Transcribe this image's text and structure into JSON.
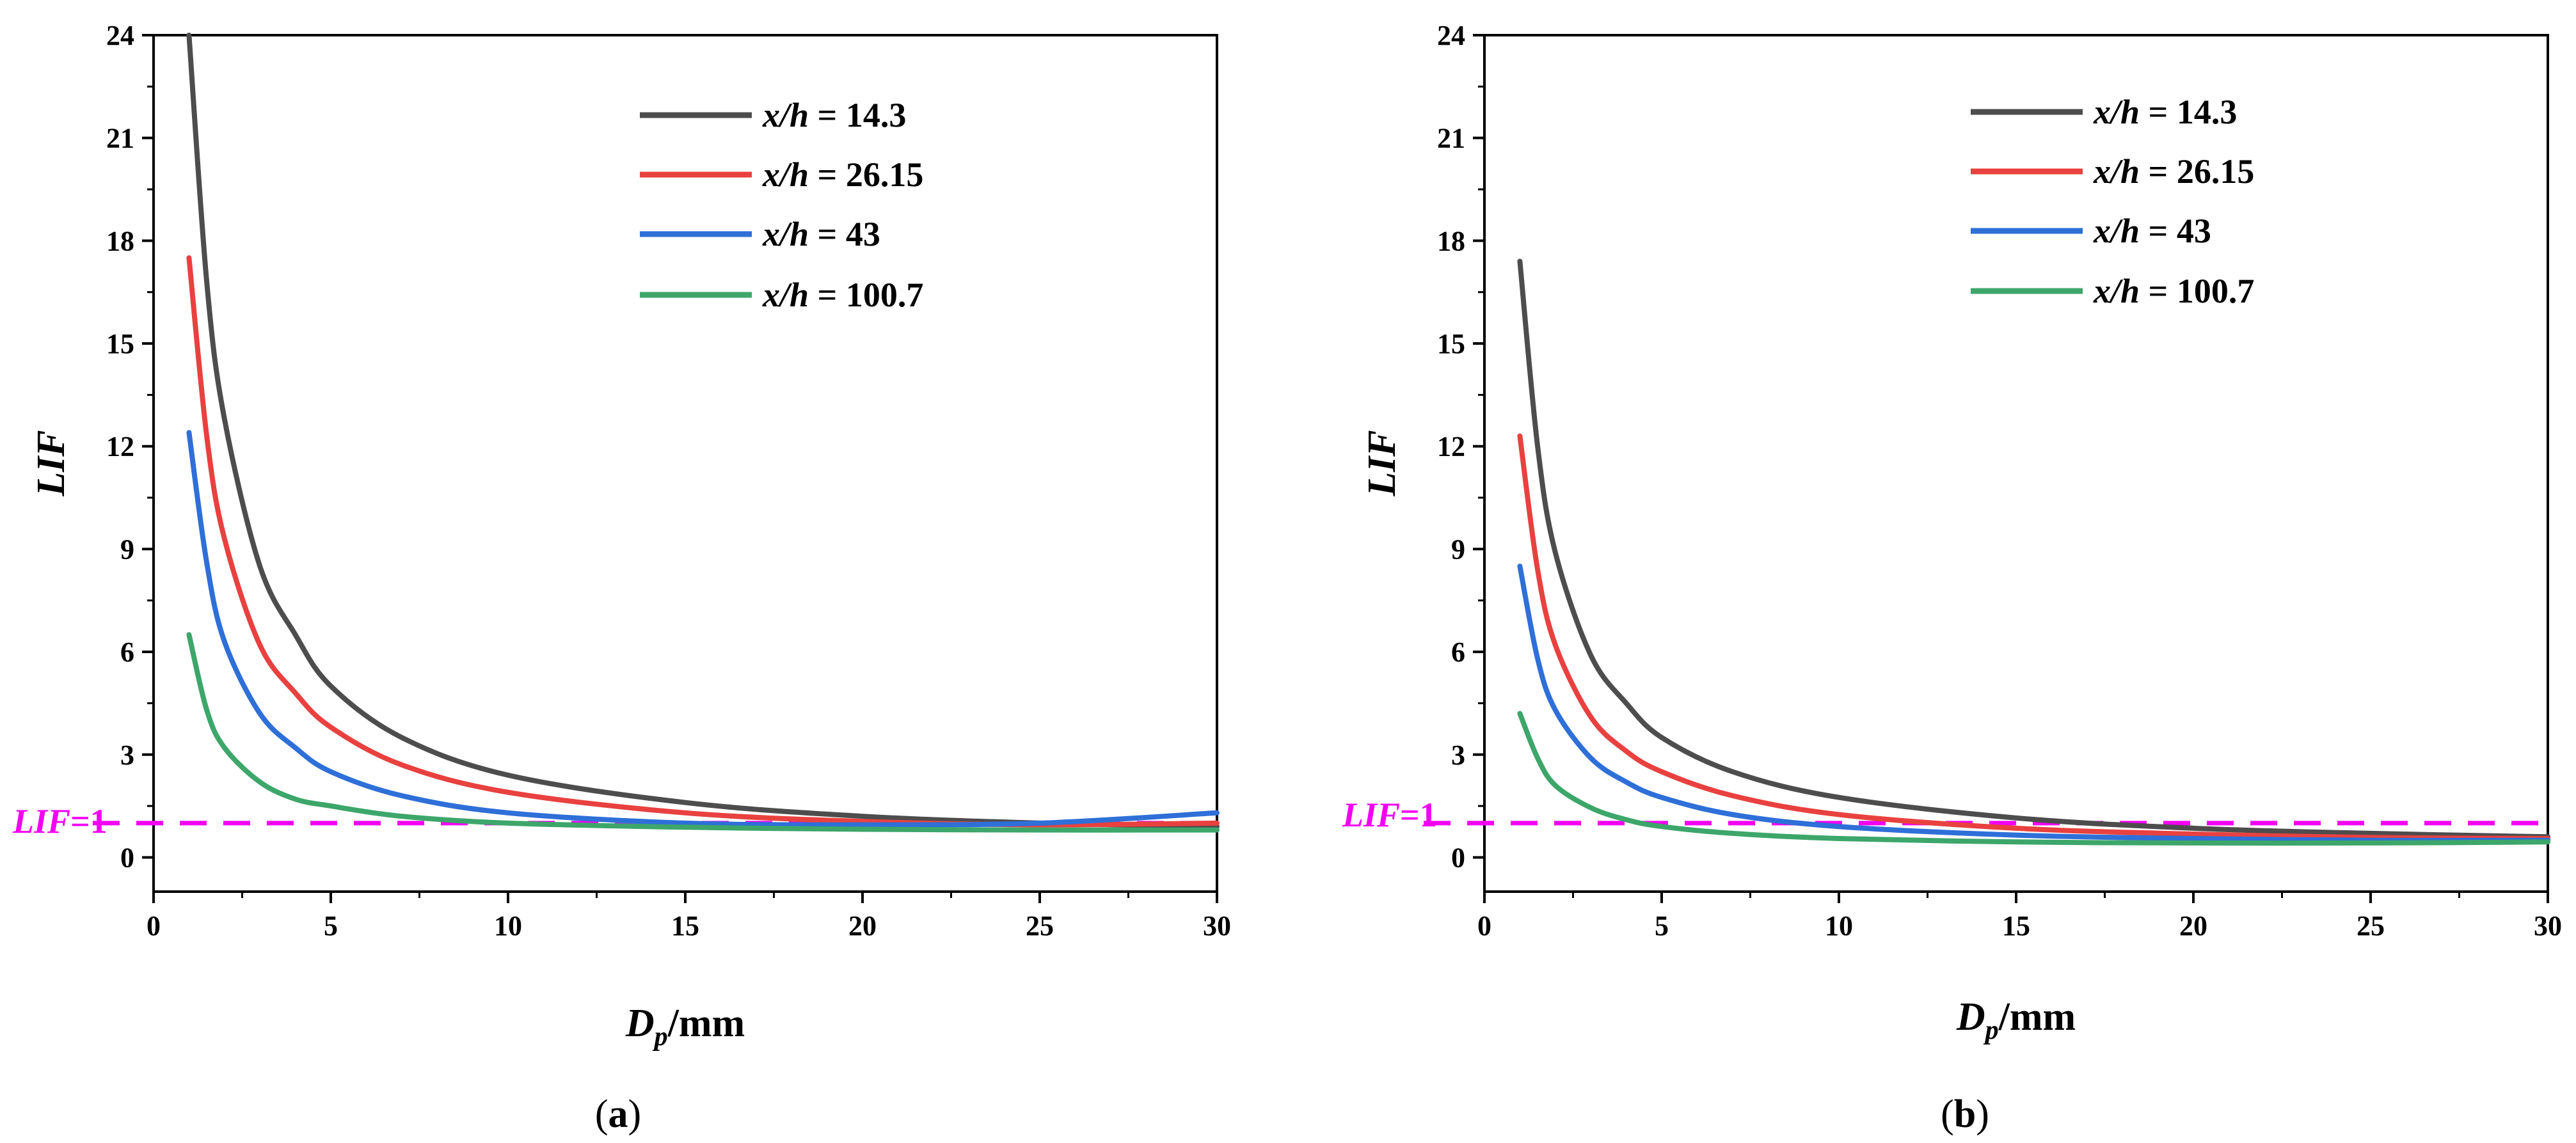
{
  "colors": {
    "series": [
      "#4d4d4d",
      "#e8413f",
      "#2e6fd8",
      "#3da66a"
    ],
    "reference": "#f200f2",
    "axis": "#000000"
  },
  "chart_data": [
    {
      "type": "line",
      "caption": "a",
      "xlabel_main": "D",
      "xlabel_sub": "p",
      "xlabel_rest": "/mm",
      "ylabel": "LIF",
      "xlim": [
        0,
        30
      ],
      "ylim": [
        -1,
        24
      ],
      "xticks": [
        0,
        5,
        10,
        15,
        20,
        25,
        30
      ],
      "yticks": [
        0,
        3,
        6,
        9,
        12,
        15,
        18,
        21,
        24
      ],
      "reference_line": {
        "y": 1,
        "label": "LIF=1",
        "label_main": "LIF",
        "label_rest": "=1"
      },
      "legend_position": "top-right",
      "series": [
        {
          "name": "x/h = 14.3",
          "name_var": "x/h",
          "name_eq": " = 14.3",
          "x": [
            1,
            1.5,
            2,
            3,
            4,
            5,
            7,
            10,
            15,
            20,
            25,
            30
          ],
          "values": [
            24,
            16.8,
            12.8,
            8.5,
            6.5,
            5.0,
            3.5,
            2.4,
            1.6,
            1.2,
            1.0,
            0.9
          ]
        },
        {
          "name": "x/h = 26.15",
          "name_var": "x/h",
          "name_eq": " = 26.15",
          "x": [
            1,
            1.5,
            2,
            3,
            4,
            5,
            7,
            10,
            15,
            20,
            25,
            30
          ],
          "values": [
            17.5,
            12.3,
            9.3,
            6.2,
            4.8,
            3.8,
            2.7,
            1.9,
            1.3,
            1.05,
            0.95,
            1.0
          ]
        },
        {
          "name": "x/h = 43",
          "name_var": "x/h",
          "name_eq": " = 43",
          "x": [
            1,
            1.5,
            2,
            3,
            4,
            5,
            7,
            10,
            15,
            20,
            25,
            30
          ],
          "values": [
            12.4,
            8.6,
            6.3,
            4.2,
            3.2,
            2.5,
            1.8,
            1.3,
            1.0,
            0.95,
            1.0,
            1.3
          ]
        },
        {
          "name": "x/h = 100.7",
          "name_var": "x/h",
          "name_eq": " = 100.7",
          "x": [
            1,
            1.5,
            2,
            3,
            4,
            5,
            7,
            10,
            15,
            20,
            25,
            30
          ],
          "values": [
            6.5,
            4.3,
            3.2,
            2.2,
            1.7,
            1.5,
            1.2,
            1.0,
            0.88,
            0.82,
            0.8,
            0.8
          ]
        }
      ]
    },
    {
      "type": "line",
      "caption": "b",
      "xlabel_main": "D",
      "xlabel_sub": "p",
      "xlabel_rest": "/mm",
      "ylabel": "LIF",
      "xlim": [
        0,
        30
      ],
      "ylim": [
        -1,
        24
      ],
      "xticks": [
        0,
        5,
        10,
        15,
        20,
        25,
        30
      ],
      "yticks": [
        0,
        3,
        6,
        9,
        12,
        15,
        18,
        21,
        24
      ],
      "reference_line": {
        "y": 1,
        "label": "LIF=1",
        "label_main": "LIF",
        "label_rest": "=1"
      },
      "legend_position": "top-right",
      "series": [
        {
          "name": "x/h = 14.3",
          "name_var": "x/h",
          "name_eq": " = 14.3",
          "x": [
            1,
            1.5,
            2,
            3,
            4,
            5,
            7,
            10,
            15,
            20,
            25,
            30
          ],
          "values": [
            17.4,
            12.0,
            8.9,
            5.9,
            4.5,
            3.5,
            2.5,
            1.75,
            1.15,
            0.85,
            0.7,
            0.6
          ]
        },
        {
          "name": "x/h = 26.15",
          "name_var": "x/h",
          "name_eq": " = 26.15",
          "x": [
            1,
            1.5,
            2,
            3,
            4,
            5,
            7,
            10,
            15,
            20,
            25,
            30
          ],
          "values": [
            12.3,
            8.4,
            6.2,
            4.1,
            3.1,
            2.5,
            1.8,
            1.25,
            0.85,
            0.68,
            0.58,
            0.55
          ]
        },
        {
          "name": "x/h = 43",
          "name_var": "x/h",
          "name_eq": " = 43",
          "x": [
            1,
            1.5,
            2,
            3,
            4,
            5,
            7,
            10,
            15,
            20,
            25,
            30
          ],
          "values": [
            8.5,
            5.8,
            4.3,
            2.9,
            2.2,
            1.75,
            1.25,
            0.9,
            0.65,
            0.55,
            0.5,
            0.5
          ]
        },
        {
          "name": "x/h = 100.7",
          "name_var": "x/h",
          "name_eq": " = 100.7",
          "x": [
            1,
            1.5,
            2,
            3,
            4,
            5,
            7,
            10,
            15,
            20,
            25,
            30
          ],
          "values": [
            4.2,
            2.9,
            2.1,
            1.45,
            1.1,
            0.9,
            0.7,
            0.55,
            0.45,
            0.42,
            0.42,
            0.45
          ]
        }
      ]
    }
  ]
}
